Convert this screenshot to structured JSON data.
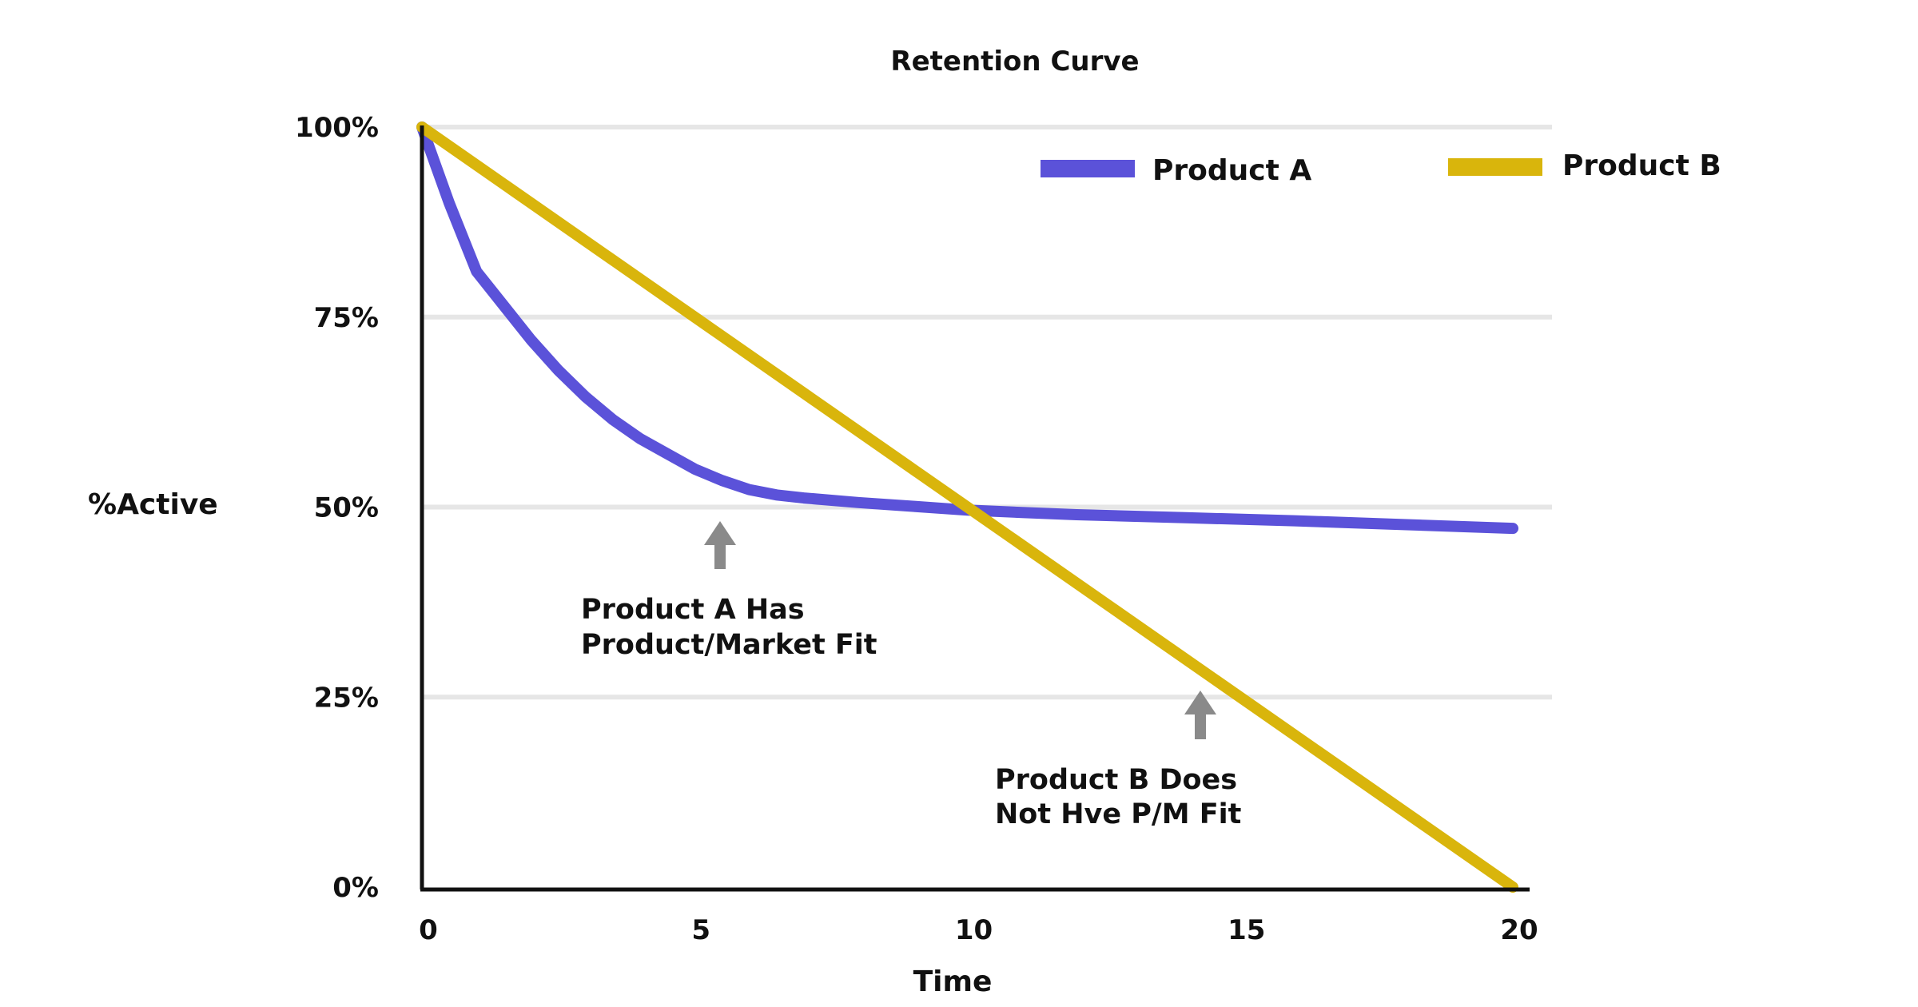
{
  "chart_data": {
    "type": "line",
    "title": "Retention Curve",
    "xlabel": "Time",
    "ylabel": "%Active",
    "xlim": [
      0,
      20
    ],
    "ylim": [
      0,
      100
    ],
    "x_ticks": [
      {
        "value": 0,
        "label": "0"
      },
      {
        "value": 5,
        "label": "5"
      },
      {
        "value": 10,
        "label": "10"
      },
      {
        "value": 15,
        "label": "15"
      },
      {
        "value": 20,
        "label": "20"
      }
    ],
    "y_ticks": [
      {
        "value": 0,
        "label": "0%"
      },
      {
        "value": 25,
        "label": "25%"
      },
      {
        "value": 50,
        "label": "50%"
      },
      {
        "value": 75,
        "label": "75%"
      },
      {
        "value": 100,
        "label": "100%"
      }
    ],
    "grid": true,
    "legend_position": "top-right",
    "series": [
      {
        "name": "Product A",
        "color": "#5b52d9",
        "x": [
          0,
          0.5,
          1,
          1.5,
          2,
          2.5,
          3,
          3.5,
          4,
          4.5,
          5,
          5.5,
          6,
          6.5,
          7,
          8,
          9,
          10,
          11,
          12,
          14,
          16,
          18,
          20
        ],
        "y": [
          100,
          90,
          81,
          76.5,
          72,
          68,
          64.5,
          61.5,
          59,
          57,
          55,
          53.5,
          52.3,
          51.6,
          51.2,
          50.6,
          50.1,
          49.6,
          49.3,
          49,
          48.6,
          48.2,
          47.7,
          47.2
        ]
      },
      {
        "name": "Product B",
        "color": "#d9b50c",
        "x": [
          0,
          20
        ],
        "y": [
          100,
          0
        ]
      }
    ],
    "annotations": [
      {
        "text_lines": [
          "Product A Has",
          "Product/Market Fit"
        ],
        "arrow_x": 5.6,
        "arrow_y": 49,
        "series": "Product A"
      },
      {
        "text_lines": [
          "Product B Does",
          "Not Hve P/M Fit"
        ],
        "arrow_x": 14.4,
        "arrow_y": 27,
        "series": "Product B"
      }
    ]
  },
  "colors": {
    "grid": "#e6e6e6",
    "axis": "#111111",
    "arrow": "#8a8a8a"
  }
}
